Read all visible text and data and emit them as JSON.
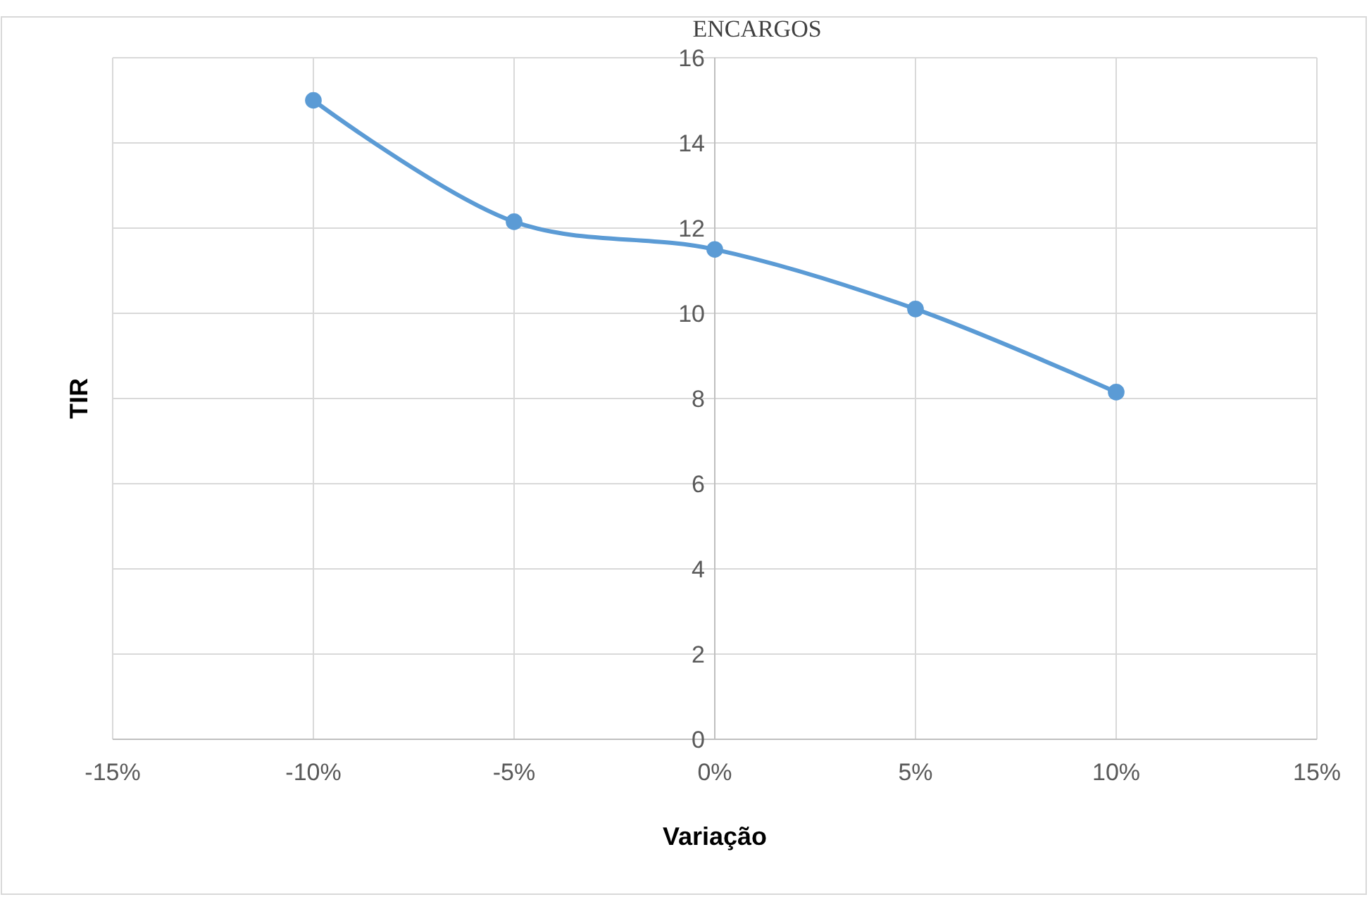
{
  "chart_data": {
    "type": "line",
    "title": "ENCARGOS",
    "xlabel": "Variação",
    "ylabel": "TIR",
    "x": [
      -10,
      -5,
      0,
      5,
      10
    ],
    "series": [
      {
        "color": "#5b9bd5",
        "values": [
          15.0,
          12.15,
          11.5,
          10.1,
          8.15
        ]
      }
    ],
    "xlim": [
      -15,
      15
    ],
    "xticks": [
      {
        "value": -15,
        "label": "-15%"
      },
      {
        "value": -10,
        "label": "-10%"
      },
      {
        "value": -5,
        "label": "-5%"
      },
      {
        "value": 0,
        "label": "0%"
      },
      {
        "value": 5,
        "label": "5%"
      },
      {
        "value": 10,
        "label": "10%"
      },
      {
        "value": 15,
        "label": "15%"
      }
    ],
    "ylim": [
      0,
      16
    ],
    "yticks": [
      0,
      2,
      4,
      6,
      8,
      10,
      12,
      14,
      16
    ],
    "grid": true,
    "marker": "circle"
  }
}
